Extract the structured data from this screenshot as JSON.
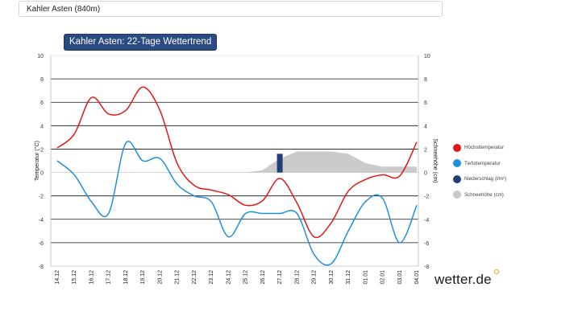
{
  "header": {
    "location_label": "Kahler Asten (840m)"
  },
  "brand": {
    "logo_text": "wetter.de"
  },
  "chart_data": {
    "type": "line",
    "title": "Kahler Asten: 22-Tage Wettertrend",
    "ylabel_left": "Temperatur (°C)",
    "ylabel_right": "Schneehöhe (cm)",
    "ylim": [
      -8,
      10
    ],
    "y_ticks": [
      -8,
      -6,
      -4,
      -2,
      0,
      2,
      4,
      6,
      8,
      10
    ],
    "gridlines": [
      -6,
      -4,
      -2,
      2,
      4,
      6,
      8
    ],
    "categories": [
      "14.12",
      "15.12",
      "16.12",
      "17.12",
      "18.12",
      "19.12",
      "20.12",
      "21.12",
      "22.12",
      "23.12",
      "24.12",
      "25.12",
      "26.12",
      "27.12",
      "28.12",
      "29.12",
      "30.12",
      "31.12",
      "01.01",
      "02.01",
      "03.01",
      "04.01"
    ],
    "series": [
      {
        "name": "Höchsttemperatur",
        "color": "#e01818",
        "values": [
          2.1,
          3.3,
          6.4,
          5.0,
          5.3,
          7.3,
          5.3,
          0.8,
          -1.1,
          -1.5,
          -1.9,
          -2.8,
          -2.4,
          -0.5,
          -2.6,
          -5.5,
          -4.3,
          -1.6,
          -0.6,
          -0.2,
          -0.3,
          2.6
        ]
      },
      {
        "name": "Tiefsttemperatur",
        "color": "#1e8fe0",
        "values": [
          1.0,
          -0.2,
          -2.5,
          -3.5,
          2.5,
          1.0,
          1.2,
          -1.0,
          -2.0,
          -2.5,
          -5.5,
          -3.5,
          -3.5,
          -3.5,
          -3.5,
          -7.0,
          -7.8,
          -5.0,
          -2.5,
          -2.2,
          -6.0,
          -2.8
        ]
      },
      {
        "name": "Niederschlag (l/m²)",
        "color": "#223f75",
        "type": "bar",
        "values": [
          0,
          0,
          0,
          0,
          0,
          0,
          0,
          0,
          0,
          0,
          0,
          0,
          0,
          1.6,
          0,
          0,
          0,
          0,
          0,
          0,
          0,
          0
        ]
      },
      {
        "name": "Schneehöhe (cm)",
        "color": "#c8c8c8",
        "type": "area",
        "values": [
          0,
          0,
          0,
          0,
          0,
          0,
          0,
          0,
          0,
          0,
          0,
          0,
          0.2,
          1.2,
          1.8,
          1.8,
          1.8,
          1.6,
          0.8,
          0.5,
          0.5,
          0.5
        ]
      }
    ],
    "legend_position": "right"
  }
}
